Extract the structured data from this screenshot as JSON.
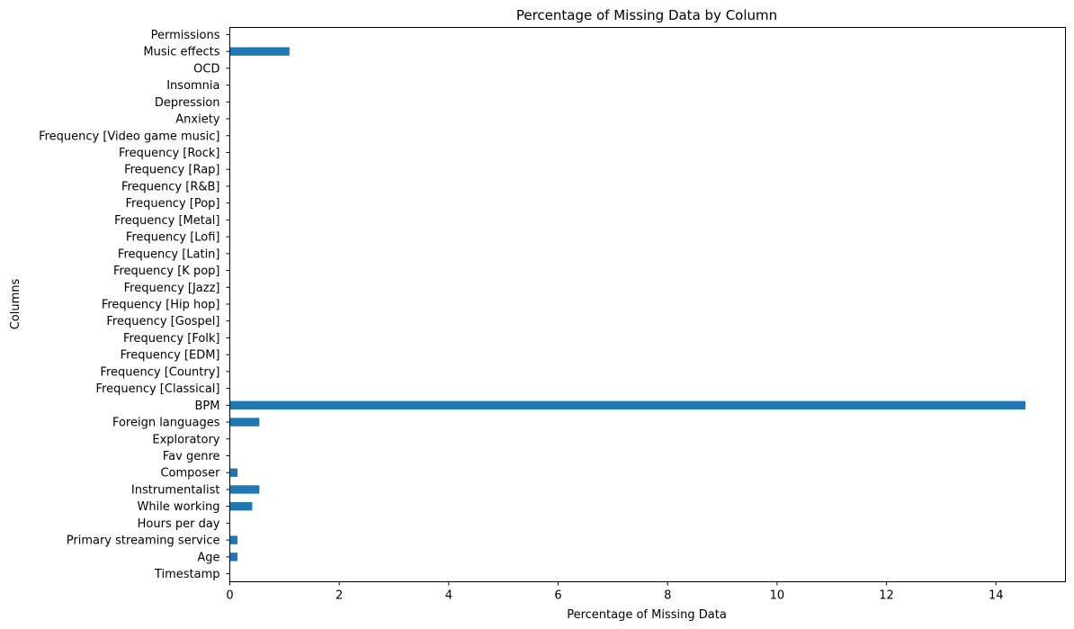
{
  "chart_data": {
    "type": "bar",
    "orientation": "horizontal",
    "title": "Percentage of Missing Data by Column",
    "xlabel": "Percentage of Missing Data",
    "ylabel": "Columns",
    "xlim": [
      0,
      15.27
    ],
    "xticks": [
      "0",
      "2",
      "4",
      "6",
      "8",
      "10",
      "12",
      "14"
    ],
    "grid": false,
    "bar_color": "#1f77b4",
    "categories": [
      "Timestamp",
      "Age",
      "Primary streaming service",
      "Hours per day",
      "While working",
      "Instrumentalist",
      "Composer",
      "Fav genre",
      "Exploratory",
      "Foreign languages",
      "BPM",
      "Frequency [Classical]",
      "Frequency [Country]",
      "Frequency [EDM]",
      "Frequency [Folk]",
      "Frequency [Gospel]",
      "Frequency [Hip hop]",
      "Frequency [Jazz]",
      "Frequency [K pop]",
      "Frequency [Latin]",
      "Frequency [Lofi]",
      "Frequency [Metal]",
      "Frequency [Pop]",
      "Frequency [R&B]",
      "Frequency [Rap]",
      "Frequency [Rock]",
      "Frequency [Video game music]",
      "Anxiety",
      "Depression",
      "Insomnia",
      "OCD",
      "Music effects",
      "Permissions"
    ],
    "values": [
      0,
      0.14,
      0.14,
      0,
      0.41,
      0.54,
      0.14,
      0,
      0,
      0.54,
      14.54,
      0,
      0,
      0,
      0,
      0,
      0,
      0,
      0,
      0,
      0,
      0,
      0,
      0,
      0,
      0,
      0,
      0,
      0,
      0,
      0,
      1.09,
      0
    ]
  }
}
